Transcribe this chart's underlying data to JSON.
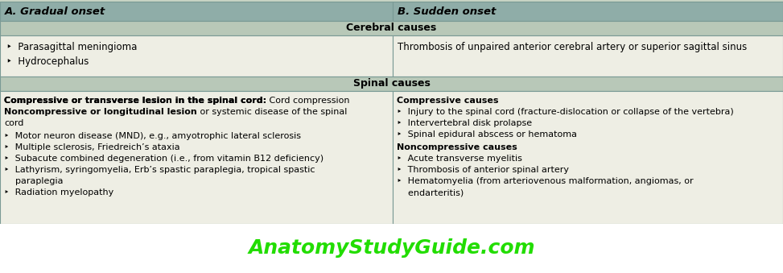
{
  "fig_width": 9.73,
  "fig_height": 3.39,
  "dpi": 100,
  "bg_color": "#c8d4c4",
  "header_bg": "#8fada8",
  "section_bg": "#b8c8b8",
  "cell_bg": "#eeeee4",
  "border_color": "#7a9a95",
  "col_split": 0.502,
  "header_left": "A. Gradual onset",
  "header_right": "B. Sudden onset",
  "cerebral_label": "Cerebral causes",
  "spinal_label": "Spinal causes",
  "cerebral_left_bullets": [
    "Parasagittal meningioma",
    "Hydrocephalus"
  ],
  "cerebral_right": "Thrombosis of unpaired anterior cerebral artery or superior sagittal sinus",
  "footer_text": "AnatomyStudyGuide.com",
  "footer_color": "#22dd00",
  "footer_bg": "#ffffff",
  "bullet_char": "‣"
}
